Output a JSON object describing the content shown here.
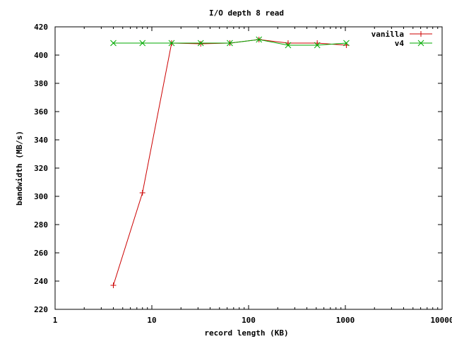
{
  "chart_data": {
    "type": "line",
    "title": "I/O depth 8 read",
    "xlabel": "record length (KB)",
    "ylabel": "bandwidth (MB/s)",
    "xscale": "log",
    "xlim": [
      1,
      10000
    ],
    "ylim": [
      220,
      420
    ],
    "x_ticks": [
      1,
      10,
      100,
      1000,
      10000
    ],
    "x_tick_labels": [
      "1",
      "10",
      "100",
      "1000",
      "10000"
    ],
    "y_ticks": [
      220,
      240,
      260,
      280,
      300,
      320,
      340,
      360,
      380,
      400,
      420
    ],
    "y_tick_labels": [
      "220",
      "240",
      "260",
      "280",
      "300",
      "320",
      "340",
      "360",
      "380",
      "400",
      "420"
    ],
    "grid": false,
    "legend_position": "top-right",
    "series": [
      {
        "name": "vanilla",
        "color": "#cc0000",
        "marker": "plus",
        "x": [
          4,
          8,
          16,
          32,
          64,
          128,
          256,
          512,
          1024
        ],
        "y": [
          237,
          302.5,
          408.5,
          408,
          408.5,
          411,
          408.5,
          408.5,
          407
        ]
      },
      {
        "name": "v4",
        "color": "#00aa00",
        "marker": "cross",
        "x": [
          4,
          8,
          16,
          32,
          64,
          128,
          256,
          512,
          1024
        ],
        "y": [
          408.5,
          408.5,
          408.5,
          408.5,
          408.5,
          411,
          407,
          407,
          408.5
        ]
      }
    ]
  }
}
